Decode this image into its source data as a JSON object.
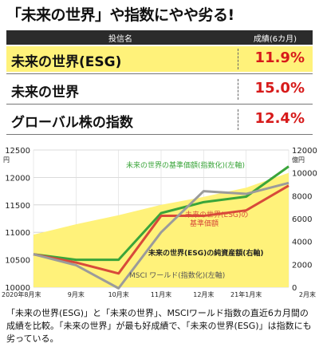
{
  "title": "「未来の世界」や指数にやや劣る!",
  "table": {
    "col_name": "投信名",
    "col_value": "成績(6カ月)",
    "rows": [
      {
        "name": "未来の世界(ESG)",
        "value": "11.9%"
      },
      {
        "name": "未来の世界",
        "value": "15.0%"
      },
      {
        "name": "グローバル株の指数",
        "value": "12.4%"
      }
    ]
  },
  "colors": {
    "green": "#3aa53a",
    "red": "#d84a3a",
    "gray": "#9b9b9b",
    "fill": "#fff27a",
    "accent_red": "#d71a1a"
  },
  "chart_data": {
    "type": "line",
    "x": [
      "2020年8月末",
      "9月末",
      "10月末",
      "11月末",
      "12月末",
      "21年1月末",
      "2月末"
    ],
    "y_left": {
      "ylim": [
        10000,
        12500
      ],
      "ticks": [
        10000,
        10500,
        11000,
        11500,
        12000,
        12500
      ],
      "unit": "円"
    },
    "y_right": {
      "ylim": [
        0,
        12000
      ],
      "ticks": [
        0,
        2000,
        4000,
        6000,
        8000,
        10000,
        12000
      ],
      "unit": "億円"
    },
    "series": [
      {
        "name": "未来の世界の基準価額(指数化)(左軸)",
        "axis": "left",
        "values": [
          10600,
          10500,
          10500,
          11350,
          11550,
          11650,
          12200
        ]
      },
      {
        "name": "未来の世界(ESG)の基準価額",
        "axis": "left",
        "values": [
          10600,
          10450,
          10250,
          11300,
          11300,
          11400,
          11850
        ]
      },
      {
        "name": "MSCI ワールド(指数化)(左軸)",
        "axis": "left",
        "values": [
          10600,
          10400,
          9980,
          11000,
          11750,
          11700,
          11900
        ]
      },
      {
        "name": "未来の世界(ESG)の純資産額(右軸)",
        "axis": "right",
        "values": [
          4600,
          5500,
          6300,
          7200,
          7900,
          8700,
          10000
        ]
      }
    ]
  },
  "caption": "「未来の世界(ESG)」と「未来の世界」、MSCIワールド指数の直近6カ月間の成績を比較。「未来の世界」が最も好成績で、「未来の世界(ESG)」は指数にも劣っている。"
}
